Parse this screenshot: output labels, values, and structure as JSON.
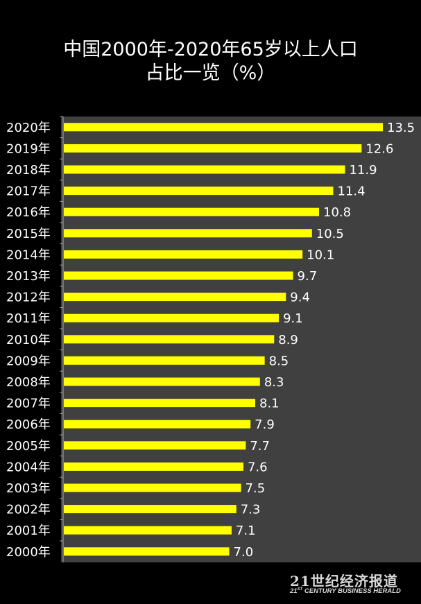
{
  "chart_data": {
    "type": "bar",
    "orientation": "horizontal",
    "title_line1": "中国2000年-2020年65岁以上人口",
    "title_line2": "占比一览（%）",
    "categories": [
      "2020年",
      "2019年",
      "2018年",
      "2017年",
      "2016年",
      "2015年",
      "2014年",
      "2013年",
      "2012年",
      "2011年",
      "2010年",
      "2009年",
      "2008年",
      "2007年",
      "2006年",
      "2005年",
      "2004年",
      "2003年",
      "2002年",
      "2001年",
      "2000年"
    ],
    "values": [
      13.5,
      12.6,
      11.9,
      11.4,
      10.8,
      10.5,
      10.1,
      9.7,
      9.4,
      9.1,
      8.9,
      8.5,
      8.3,
      8.1,
      7.9,
      7.7,
      7.6,
      7.5,
      7.3,
      7.1,
      7.0
    ],
    "value_labels": [
      "13.5",
      "12.6",
      "11.9",
      "11.4",
      "10.8",
      "10.5",
      "10.1",
      "9.7",
      "9.4",
      "9.1",
      "8.9",
      "8.5",
      "8.3",
      "8.1",
      "7.9",
      "7.7",
      "7.6",
      "7.5",
      "7.3",
      "7.1",
      "7.0"
    ],
    "xlim": [
      0,
      13.5
    ],
    "grid": false,
    "legend": "none",
    "bar_color": "#ffff00",
    "plot_background": "#404040",
    "page_background": "#000000"
  },
  "watermark": {
    "cn": "21世纪经济报道",
    "en_prefix": "21",
    "en_sup": "ST",
    "en_rest": " CENTURY BUSINESS HERALD"
  }
}
